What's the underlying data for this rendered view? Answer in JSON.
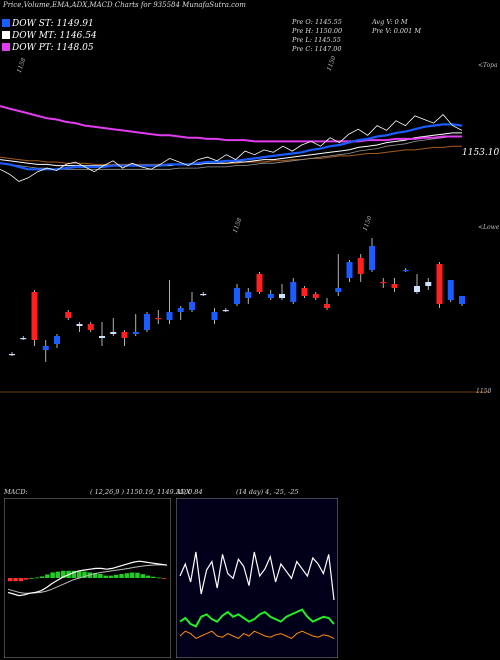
{
  "header": "Price,Volume,EMA,ADX,MACD Charts for 935584  MunafaSutra.com",
  "dow": [
    {
      "label": "DOW ST: 1149.91",
      "color": "#1a5cff"
    },
    {
      "label": "DOW MT: 1146.54",
      "color": "#ffffff"
    },
    {
      "label": "DOW PT: 1148.05",
      "color": "#e23cf0"
    }
  ],
  "ohlc": {
    "open": "Pre   O: 1145.55",
    "high": "Pre   H: 1150.00",
    "low": "Pre   L: 1145.55",
    "close": "Pre   C: 1147.00",
    "avgv": "Avg V: 0  M",
    "prev": "Pre   V: 0.001 M"
  },
  "labels": {
    "top_left_1158": "1158",
    "top_mid_1150": "1150",
    "topa": "<Topa",
    "price_last": "1153.10",
    "mid_1158": "1158",
    "mid_1150": "1150",
    "lower": "<Lowe",
    "bottom_1150": "1150"
  },
  "macd_header": "MACD:",
  "macd_params": "( 12,26,9 ) 1150.19,  1149.35,  0.84",
  "adx_header": "ADX",
  "adx_params": "(14  day) 4,  -25,  -25",
  "colors": {
    "up": "#1a5cff",
    "down": "#ff2020",
    "ema_long": "#e23cf0",
    "ema_orange": "#a65a1a",
    "adx_green": "#22ee22",
    "adx_orange": "#ff8c00"
  },
  "chart_data": [
    {
      "type": "line",
      "name": "price-ema",
      "close": [
        1146.0,
        1145.6,
        1145.0,
        1145.3,
        1145.8,
        1146.1,
        1145.9,
        1146.4,
        1146.6,
        1146.2,
        1145.8,
        1146.3,
        1146.7,
        1146.1,
        1146.5,
        1146.2,
        1146.0,
        1146.4,
        1146.9,
        1146.6,
        1146.3,
        1146.8,
        1147.0,
        1146.7,
        1147.2,
        1146.8,
        1147.5,
        1147.2,
        1147.6,
        1147.4,
        1147.9,
        1147.5,
        1148.0,
        1148.3,
        1147.9,
        1148.6,
        1148.2,
        1148.9,
        1149.3,
        1148.8,
        1149.6,
        1149.2,
        1150.0,
        1149.6,
        1150.4,
        1150.1,
        1149.8,
        1150.5,
        1149.6,
        1149.2
      ],
      "ema_short": [
        1146.5,
        1146.4,
        1146.2,
        1146.0,
        1146.0,
        1146.0,
        1146.0,
        1146.1,
        1146.2,
        1146.2,
        1146.2,
        1146.2,
        1146.3,
        1146.3,
        1146.3,
        1146.3,
        1146.3,
        1146.3,
        1146.4,
        1146.4,
        1146.4,
        1146.5,
        1146.6,
        1146.6,
        1146.7,
        1146.7,
        1146.8,
        1146.9,
        1147.0,
        1147.1,
        1147.2,
        1147.3,
        1147.4,
        1147.6,
        1147.7,
        1147.9,
        1148.0,
        1148.2,
        1148.4,
        1148.5,
        1148.7,
        1148.8,
        1149.0,
        1149.1,
        1149.3,
        1149.5,
        1149.6,
        1149.7,
        1149.7,
        1149.6
      ],
      "ema_mid": [
        1146.8,
        1146.7,
        1146.6,
        1146.5,
        1146.4,
        1146.4,
        1146.3,
        1146.3,
        1146.3,
        1146.3,
        1146.3,
        1146.3,
        1146.3,
        1146.3,
        1146.3,
        1146.3,
        1146.3,
        1146.3,
        1146.3,
        1146.4,
        1146.4,
        1146.4,
        1146.5,
        1146.5,
        1146.5,
        1146.6,
        1146.6,
        1146.7,
        1146.8,
        1146.8,
        1146.9,
        1147.0,
        1147.1,
        1147.2,
        1147.3,
        1147.4,
        1147.5,
        1147.6,
        1147.8,
        1147.9,
        1148.0,
        1148.2,
        1148.3,
        1148.4,
        1148.6,
        1148.7,
        1148.8,
        1148.9,
        1149.0,
        1149.0
      ],
      "ema_long": [
        1151.2,
        1151.0,
        1150.8,
        1150.6,
        1150.4,
        1150.2,
        1150.1,
        1149.9,
        1149.8,
        1149.6,
        1149.5,
        1149.4,
        1149.3,
        1149.2,
        1149.1,
        1149.0,
        1148.9,
        1148.8,
        1148.8,
        1148.7,
        1148.6,
        1148.6,
        1148.5,
        1148.5,
        1148.4,
        1148.4,
        1148.4,
        1148.3,
        1148.3,
        1148.3,
        1148.3,
        1148.3,
        1148.3,
        1148.3,
        1148.3,
        1148.3,
        1148.3,
        1148.3,
        1148.3,
        1148.4,
        1148.4,
        1148.4,
        1148.5,
        1148.5,
        1148.5,
        1148.6,
        1148.6,
        1148.7,
        1148.7,
        1148.7
      ],
      "ema_orange": [
        1147.0,
        1146.9,
        1146.8,
        1146.7,
        1146.7,
        1146.6,
        1146.6,
        1146.5,
        1146.5,
        1146.5,
        1146.4,
        1146.4,
        1146.4,
        1146.4,
        1146.4,
        1146.4,
        1146.4,
        1146.4,
        1146.4,
        1146.4,
        1146.4,
        1146.4,
        1146.5,
        1146.5,
        1146.5,
        1146.5,
        1146.6,
        1146.6,
        1146.6,
        1146.7,
        1146.7,
        1146.8,
        1146.8,
        1146.9,
        1146.9,
        1147.0,
        1147.1,
        1147.1,
        1147.2,
        1147.3,
        1147.3,
        1147.4,
        1147.5,
        1147.6,
        1147.6,
        1147.7,
        1147.8,
        1147.8,
        1147.9,
        1147.9
      ],
      "ylim": [
        1141,
        1155
      ]
    },
    {
      "type": "candlestick",
      "name": "candles",
      "candles": [
        {
          "o": 1145.8,
          "h": 1145.9,
          "l": 1145.7,
          "c": 1145.8,
          "d": "flat"
        },
        {
          "o": 1146.6,
          "h": 1146.7,
          "l": 1146.5,
          "c": 1146.6,
          "d": "flat"
        },
        {
          "o": 1148.9,
          "h": 1149.0,
          "l": 1146.2,
          "c": 1146.5,
          "d": "down"
        },
        {
          "o": 1146.0,
          "h": 1146.5,
          "l": 1145.4,
          "c": 1146.2,
          "d": "up"
        },
        {
          "o": 1146.3,
          "h": 1146.8,
          "l": 1146.1,
          "c": 1146.7,
          "d": "up"
        },
        {
          "o": 1147.9,
          "h": 1148.0,
          "l": 1147.5,
          "c": 1147.6,
          "d": "down"
        },
        {
          "o": 1147.2,
          "h": 1147.4,
          "l": 1146.9,
          "c": 1147.3,
          "d": "flat"
        },
        {
          "o": 1147.3,
          "h": 1147.4,
          "l": 1146.9,
          "c": 1147.0,
          "d": "down"
        },
        {
          "o": 1146.6,
          "h": 1147.4,
          "l": 1146.2,
          "c": 1146.7,
          "d": "flat"
        },
        {
          "o": 1146.8,
          "h": 1147.6,
          "l": 1146.7,
          "c": 1146.9,
          "d": "flat"
        },
        {
          "o": 1146.9,
          "h": 1147.0,
          "l": 1146.2,
          "c": 1146.6,
          "d": "down"
        },
        {
          "o": 1146.8,
          "h": 1147.8,
          "l": 1146.7,
          "c": 1146.9,
          "d": "up"
        },
        {
          "o": 1147.0,
          "h": 1147.9,
          "l": 1146.9,
          "c": 1147.8,
          "d": "up"
        },
        {
          "o": 1147.6,
          "h": 1148.0,
          "l": 1147.3,
          "c": 1147.6,
          "d": "down"
        },
        {
          "o": 1147.5,
          "h": 1149.5,
          "l": 1147.3,
          "c": 1147.9,
          "d": "up"
        },
        {
          "o": 1147.9,
          "h": 1148.2,
          "l": 1147.5,
          "c": 1148.1,
          "d": "up"
        },
        {
          "o": 1148.0,
          "h": 1148.9,
          "l": 1147.9,
          "c": 1148.4,
          "d": "up"
        },
        {
          "o": 1148.8,
          "h": 1148.9,
          "l": 1148.7,
          "c": 1148.8,
          "d": "flat"
        },
        {
          "o": 1147.5,
          "h": 1148.1,
          "l": 1147.3,
          "c": 1147.9,
          "d": "up"
        },
        {
          "o": 1148.0,
          "h": 1148.1,
          "l": 1147.9,
          "c": 1148.0,
          "d": "flat"
        },
        {
          "o": 1148.3,
          "h": 1149.3,
          "l": 1148.2,
          "c": 1149.1,
          "d": "up"
        },
        {
          "o": 1148.6,
          "h": 1149.1,
          "l": 1148.3,
          "c": 1148.9,
          "d": "up"
        },
        {
          "o": 1149.8,
          "h": 1149.9,
          "l": 1148.8,
          "c": 1148.9,
          "d": "down"
        },
        {
          "o": 1148.6,
          "h": 1149.0,
          "l": 1148.5,
          "c": 1148.8,
          "d": "up"
        },
        {
          "o": 1148.6,
          "h": 1149.3,
          "l": 1148.5,
          "c": 1148.8,
          "d": "flat"
        },
        {
          "o": 1148.4,
          "h": 1149.6,
          "l": 1148.3,
          "c": 1149.4,
          "d": "up"
        },
        {
          "o": 1149.1,
          "h": 1149.2,
          "l": 1148.6,
          "c": 1148.7,
          "d": "down"
        },
        {
          "o": 1148.8,
          "h": 1148.9,
          "l": 1148.5,
          "c": 1148.6,
          "d": "down"
        },
        {
          "o": 1148.1,
          "h": 1148.6,
          "l": 1148.0,
          "c": 1148.3,
          "d": "down"
        },
        {
          "o": 1148.9,
          "h": 1150.8,
          "l": 1148.7,
          "c": 1149.1,
          "d": "up"
        },
        {
          "o": 1149.6,
          "h": 1150.5,
          "l": 1149.4,
          "c": 1150.4,
          "d": "up"
        },
        {
          "o": 1150.6,
          "h": 1150.8,
          "l": 1149.4,
          "c": 1149.8,
          "d": "down"
        },
        {
          "o": 1150.0,
          "h": 1151.6,
          "l": 1149.9,
          "c": 1151.2,
          "d": "up"
        },
        {
          "o": 1149.4,
          "h": 1149.6,
          "l": 1149.1,
          "c": 1149.4,
          "d": "down"
        },
        {
          "o": 1149.3,
          "h": 1149.6,
          "l": 1148.9,
          "c": 1149.1,
          "d": "down"
        },
        {
          "o": 1150.0,
          "h": 1150.1,
          "l": 1149.9,
          "c": 1150.0,
          "d": "up"
        },
        {
          "o": 1148.9,
          "h": 1149.8,
          "l": 1148.8,
          "c": 1149.2,
          "d": "flat"
        },
        {
          "o": 1149.4,
          "h": 1149.6,
          "l": 1149.0,
          "c": 1149.2,
          "d": "flat"
        },
        {
          "o": 1150.3,
          "h": 1150.4,
          "l": 1148.1,
          "c": 1148.3,
          "d": "down"
        },
        {
          "o": 1148.5,
          "h": 1149.5,
          "l": 1148.4,
          "c": 1149.5,
          "d": "up"
        },
        {
          "o": 1148.3,
          "h": 1148.7,
          "l": 1148.2,
          "c": 1148.7,
          "d": "up"
        }
      ],
      "ylim": [
        1144,
        1152
      ]
    },
    {
      "type": "line",
      "name": "macd",
      "macd": [
        -0.9,
        -1.0,
        -1.1,
        -1.05,
        -0.95,
        -0.9,
        -0.8,
        -0.6,
        -0.35,
        -0.15,
        0.05,
        0.2,
        0.35,
        0.45,
        0.5,
        0.55,
        0.6,
        0.6,
        0.55,
        0.6,
        0.7,
        0.8,
        0.9,
        1.0,
        1.05,
        1.0,
        0.95,
        0.9,
        0.85,
        0.8
      ],
      "signal": [
        -0.7,
        -0.8,
        -0.9,
        -0.95,
        -0.95,
        -0.93,
        -0.9,
        -0.82,
        -0.7,
        -0.55,
        -0.4,
        -0.25,
        -0.1,
        0.0,
        0.1,
        0.2,
        0.28,
        0.35,
        0.4,
        0.45,
        0.5,
        0.55,
        0.6,
        0.66,
        0.72,
        0.76,
        0.8,
        0.82,
        0.82,
        0.82
      ],
      "histogram": [
        -0.2,
        -0.2,
        -0.2,
        -0.1,
        0.0,
        0.03,
        0.1,
        0.22,
        0.35,
        0.4,
        0.45,
        0.45,
        0.45,
        0.45,
        0.4,
        0.35,
        0.32,
        0.25,
        0.15,
        0.15,
        0.2,
        0.25,
        0.3,
        0.34,
        0.33,
        0.24,
        0.15,
        0.08,
        0.03,
        -0.02
      ],
      "ylim": [
        -2.5,
        2.5
      ]
    },
    {
      "type": "line",
      "name": "adx",
      "di_plus": [
        60,
        70,
        55,
        80,
        45,
        65,
        72,
        50,
        78,
        62,
        58,
        74,
        68,
        52,
        80,
        60,
        66,
        76,
        55,
        70,
        64,
        58,
        72,
        66,
        60,
        75,
        70,
        62,
        78,
        40
      ],
      "di_minus": [
        40,
        38,
        42,
        36,
        44,
        40,
        34,
        46,
        38,
        42,
        45,
        36,
        40,
        48,
        34,
        42,
        38,
        36,
        44,
        38,
        40,
        46,
        36,
        42,
        44,
        38,
        40,
        42,
        36,
        45
      ],
      "adx_green": [
        22,
        25,
        20,
        18,
        26,
        28,
        24,
        22,
        27,
        30,
        26,
        28,
        25,
        22,
        24,
        28,
        30,
        26,
        24,
        22,
        26,
        28,
        30,
        32,
        26,
        22,
        24,
        26,
        25,
        20
      ],
      "adx_orange": [
        10,
        14,
        12,
        8,
        10,
        12,
        14,
        10,
        9,
        12,
        10,
        8,
        12,
        10,
        14,
        12,
        10,
        9,
        11,
        12,
        10,
        8,
        12,
        14,
        12,
        10,
        9,
        11,
        10,
        8
      ],
      "ylim": [
        0,
        100
      ]
    }
  ]
}
